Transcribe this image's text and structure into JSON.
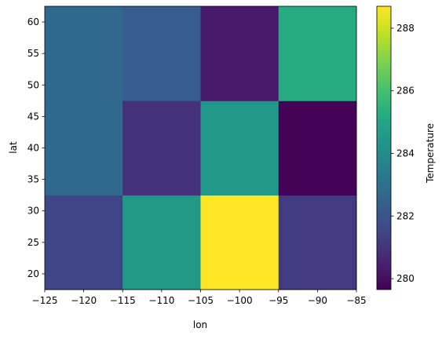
{
  "chart_data": {
    "type": "heatmap",
    "xlabel": "lon",
    "ylabel": "lat",
    "x_edges": [
      -125,
      -115,
      -105,
      -95,
      -85
    ],
    "y_edges": [
      17.5,
      32.5,
      47.5,
      62.5
    ],
    "xlim": [
      -125,
      -85
    ],
    "ylim": [
      17.5,
      62.5
    ],
    "x_ticks": [
      -125,
      -120,
      -115,
      -110,
      -105,
      -100,
      -95,
      -90,
      -85
    ],
    "x_tick_labels": [
      "−125",
      "−120",
      "−115",
      "−110",
      "−105",
      "−100",
      "−95",
      "−90",
      "−85"
    ],
    "y_ticks": [
      20,
      25,
      30,
      35,
      40,
      45,
      50,
      55,
      60
    ],
    "y_tick_labels": [
      "20",
      "25",
      "30",
      "35",
      "40",
      "45",
      "50",
      "55",
      "60"
    ],
    "rows_lat_ranges": [
      "17.5-32.5",
      "32.5-47.5",
      "47.5-62.5"
    ],
    "values": [
      [
        281.5,
        284.5,
        288.7,
        281.2
      ],
      [
        282.7,
        280.9,
        284.4,
        279.7
      ],
      [
        282.7,
        282.3,
        280.3,
        285.2
      ]
    ],
    "colormap": "viridis",
    "colorbar": {
      "label": "Temperature",
      "vmin": 279.65,
      "vmax": 288.7,
      "ticks": [
        280,
        282,
        284,
        286,
        288
      ],
      "tick_labels": [
        "280",
        "282",
        "284",
        "286",
        "288"
      ]
    },
    "grid": false
  }
}
